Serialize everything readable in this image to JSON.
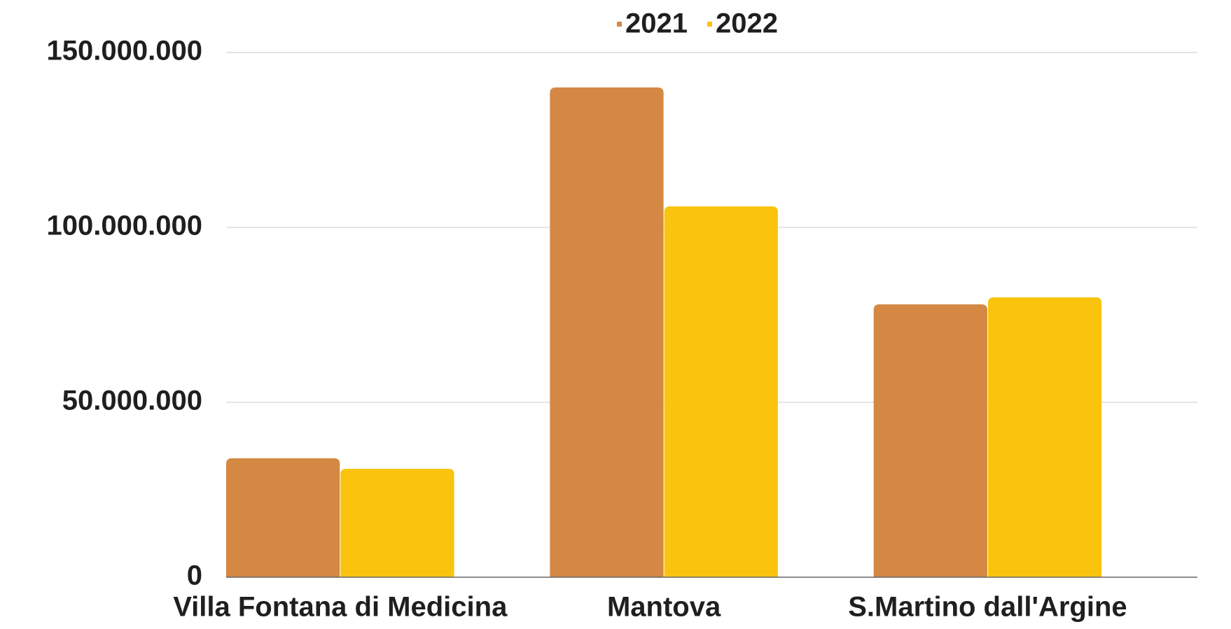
{
  "chart_data": {
    "type": "bar",
    "categories": [
      "Villa Fontana di Medicina",
      "Mantova",
      "S.Martino dall'Argine"
    ],
    "series": [
      {
        "name": "2021",
        "color": "#d48844",
        "values": [
          34000000,
          140000000,
          78000000
        ]
      },
      {
        "name": "2022",
        "color": "#fac40e",
        "values": [
          31000000,
          106000000,
          80000000
        ]
      }
    ],
    "ylim": [
      0,
      150000000
    ],
    "yticks": [
      0,
      {
        "value": 50000000,
        "label": "50.000.000"
      },
      {
        "value": 100000000,
        "label": "100.000.000"
      },
      {
        "value": 150000000,
        "label": "150.000.000"
      }
    ],
    "grid": true,
    "legend": "top"
  }
}
